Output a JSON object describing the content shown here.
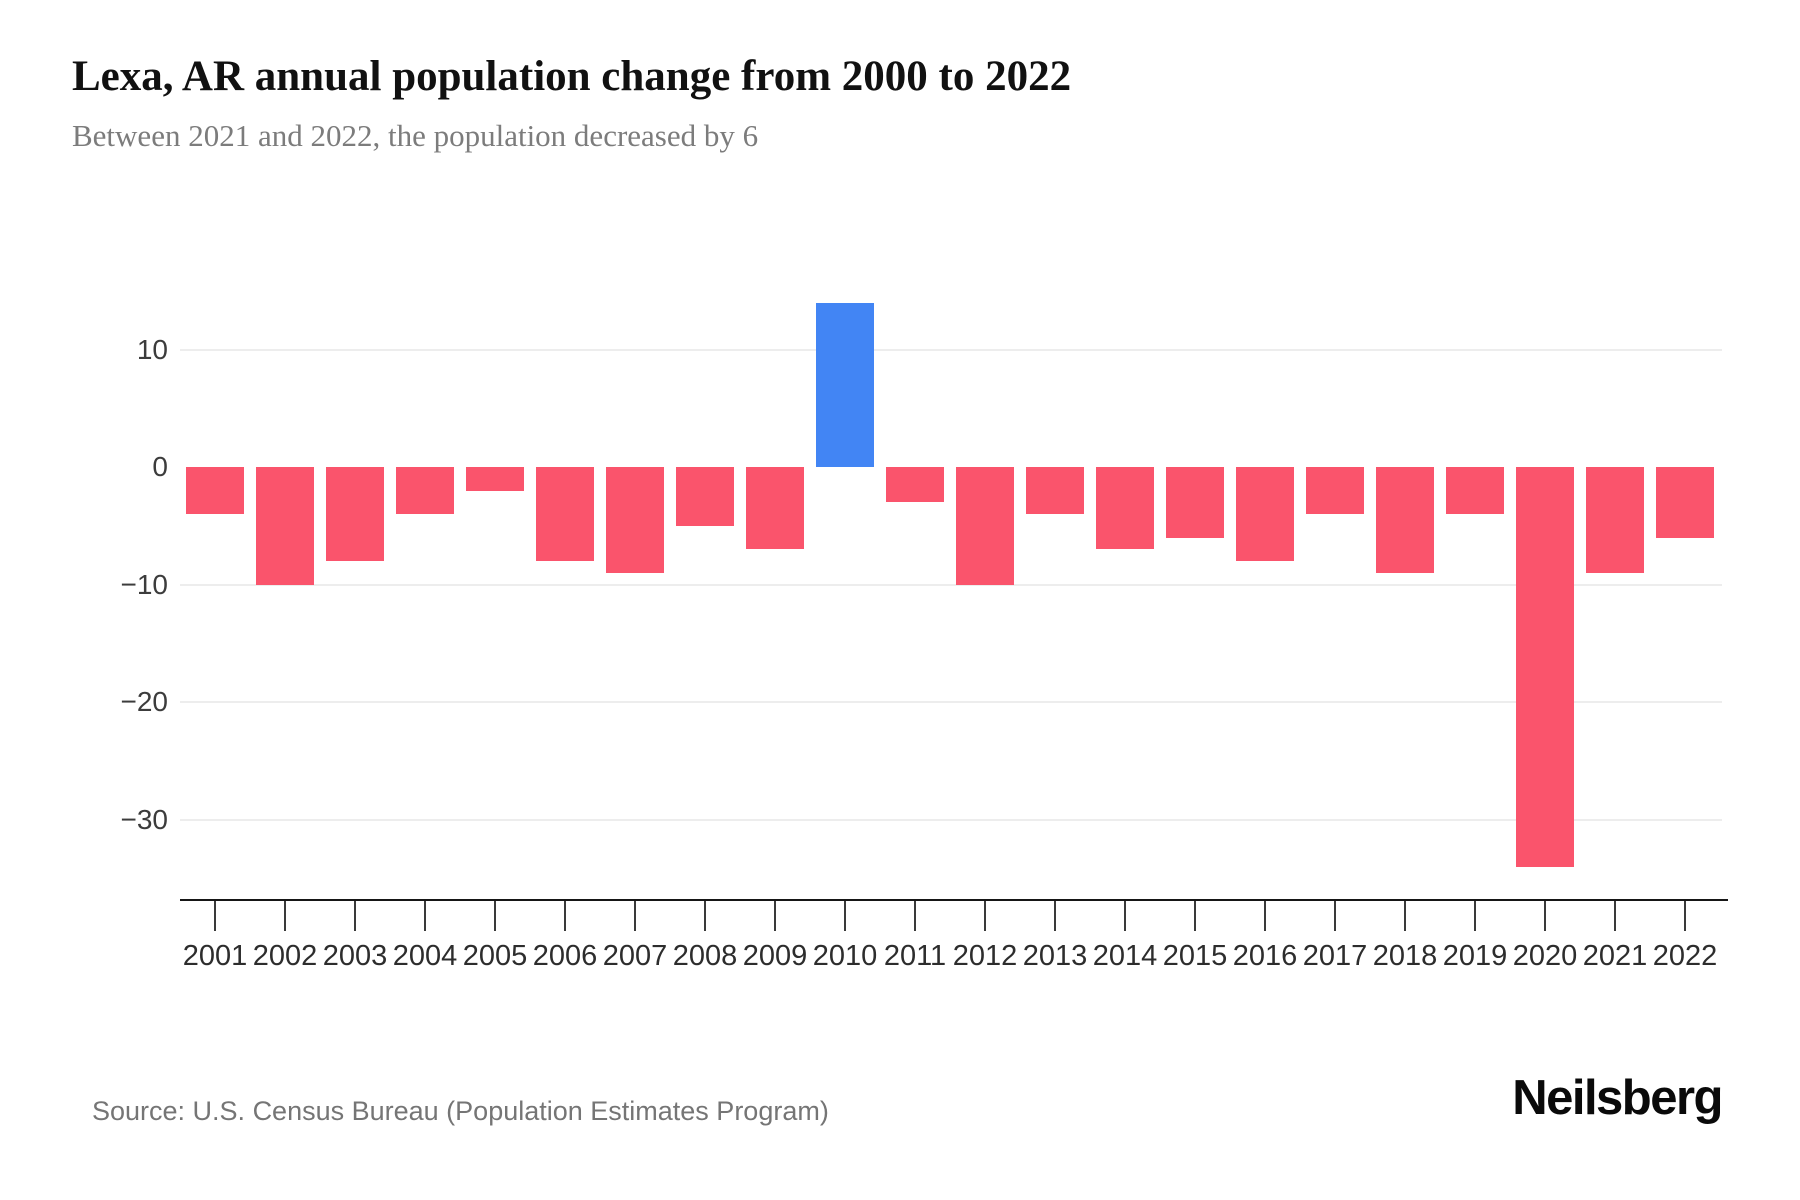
{
  "header": {
    "title": "Lexa, AR annual population change from 2000 to 2022",
    "subtitle": "Between 2021 and 2022, the population decreased by 6"
  },
  "footer": {
    "source": "Source: U.S. Census Bureau (Population Estimates Program)",
    "brand": "Neilsberg"
  },
  "chart_data": {
    "type": "bar",
    "title": "Lexa, AR annual population change from 2000 to 2022",
    "subtitle": "Between 2021 and 2022, the population decreased by 6",
    "xlabel": "",
    "ylabel": "",
    "categories": [
      "2001",
      "2002",
      "2003",
      "2004",
      "2005",
      "2006",
      "2007",
      "2008",
      "2009",
      "2010",
      "2011",
      "2012",
      "2013",
      "2014",
      "2015",
      "2016",
      "2017",
      "2018",
      "2019",
      "2020",
      "2021",
      "2022"
    ],
    "values": [
      -4,
      -10,
      -8,
      -4,
      -2,
      -8,
      -9,
      -5,
      -7,
      14,
      -3,
      -10,
      -4,
      -7,
      -6,
      -8,
      -4,
      -9,
      -4,
      -34,
      -9,
      -6
    ],
    "yticks": [
      10,
      0,
      -10,
      -20,
      -30
    ],
    "ylim": [
      -37,
      15
    ],
    "grid": true,
    "legend_position": "none",
    "colors": {
      "positive": "#4285F4",
      "negative": "#FA546C",
      "gridline": "#EDEDED",
      "axis": "#161616"
    }
  }
}
